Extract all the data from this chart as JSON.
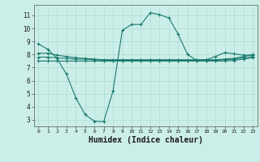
{
  "x_ticks": [
    0,
    1,
    2,
    3,
    4,
    5,
    6,
    7,
    8,
    9,
    10,
    11,
    12,
    13,
    14,
    15,
    16,
    17,
    18,
    19,
    20,
    21,
    22,
    23
  ],
  "line1": {
    "x": [
      0,
      1,
      2,
      3,
      4,
      5,
      6,
      7,
      8,
      9,
      10,
      11,
      12,
      13,
      14,
      15,
      16,
      17,
      18,
      19,
      20,
      21,
      22,
      23
    ],
    "y": [
      8.8,
      8.4,
      7.7,
      6.5,
      4.7,
      3.4,
      2.9,
      2.85,
      5.2,
      9.85,
      10.3,
      10.3,
      11.2,
      11.05,
      10.8,
      9.55,
      8.0,
      7.55,
      7.6,
      7.85,
      8.15,
      8.05,
      7.95,
      7.95
    ]
  },
  "line2": {
    "x": [
      0,
      1,
      2,
      3,
      4,
      5,
      6,
      7,
      8,
      9,
      10,
      11,
      12,
      13,
      14,
      15,
      16,
      17,
      18,
      19,
      20,
      21,
      22,
      23
    ],
    "y": [
      8.1,
      8.1,
      7.95,
      7.85,
      7.75,
      7.7,
      7.65,
      7.6,
      7.6,
      7.6,
      7.6,
      7.6,
      7.6,
      7.6,
      7.6,
      7.6,
      7.6,
      7.6,
      7.6,
      7.6,
      7.65,
      7.7,
      7.85,
      8.0
    ]
  },
  "line3": {
    "x": [
      0,
      1,
      2,
      3,
      4,
      5,
      6,
      7,
      8,
      9,
      10,
      11,
      12,
      13,
      14,
      15,
      16,
      17,
      18,
      19,
      20,
      21,
      22,
      23
    ],
    "y": [
      7.8,
      7.8,
      7.75,
      7.7,
      7.65,
      7.65,
      7.6,
      7.55,
      7.55,
      7.55,
      7.55,
      7.55,
      7.55,
      7.55,
      7.55,
      7.55,
      7.55,
      7.55,
      7.55,
      7.55,
      7.6,
      7.65,
      7.75,
      7.85
    ]
  },
  "line4": {
    "x": [
      0,
      1,
      2,
      3,
      4,
      5,
      6,
      7,
      8,
      9,
      10,
      11,
      12,
      13,
      14,
      15,
      16,
      17,
      18,
      19,
      20,
      21,
      22,
      23
    ],
    "y": [
      7.5,
      7.5,
      7.5,
      7.5,
      7.5,
      7.5,
      7.5,
      7.5,
      7.5,
      7.5,
      7.5,
      7.5,
      7.5,
      7.5,
      7.5,
      7.5,
      7.5,
      7.5,
      7.5,
      7.5,
      7.5,
      7.55,
      7.65,
      7.75
    ]
  },
  "color": "#1a7a6e",
  "bg_color": "#cceee8",
  "grid_color": "#aaddd5",
  "ylabel_values": [
    3,
    4,
    5,
    6,
    7,
    8,
    9,
    10,
    11
  ],
  "xlabel": "Humidex (Indice chaleur)",
  "xlabel_fontsize": 7,
  "ylim": [
    2.5,
    11.8
  ],
  "xlim": [
    -0.5,
    23.5
  ],
  "marker": "+",
  "markersize": 3,
  "linewidth": 0.8
}
